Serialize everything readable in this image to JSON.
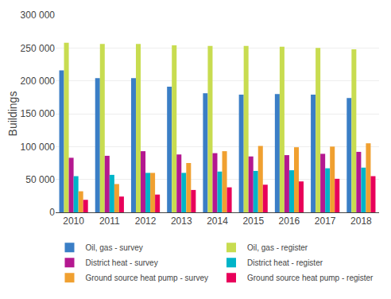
{
  "chart_data": {
    "type": "bar",
    "categories": [
      "2010",
      "2011",
      "2012",
      "2013",
      "2014",
      "2015",
      "2016",
      "2017",
      "2018"
    ],
    "series": [
      {
        "name": "Oil, gas - survey",
        "color": "#3A7EC6",
        "values": [
          216000,
          204000,
          204000,
          191000,
          181000,
          179000,
          180000,
          179000,
          174000
        ]
      },
      {
        "name": "Oil, gas - register",
        "color": "#C8DC50",
        "values": [
          258000,
          256000,
          256000,
          254000,
          253000,
          253000,
          252000,
          250000,
          248000
        ]
      },
      {
        "name": "District heat - survey",
        "color": "#B41890",
        "values": [
          83000,
          86000,
          93000,
          88000,
          90000,
          85000,
          87000,
          89000,
          92000
        ]
      },
      {
        "name": "District heat - register",
        "color": "#00B4C8",
        "values": [
          55000,
          57000,
          60000,
          60000,
          62000,
          63000,
          64000,
          67000,
          68000
        ]
      },
      {
        "name": "Ground source heat pump - survey",
        "color": "#F0A030",
        "values": [
          32000,
          43000,
          60000,
          75000,
          93000,
          101000,
          99000,
          100000,
          105000
        ]
      },
      {
        "name": "Ground source heat pump - register",
        "color": "#E8005A",
        "values": [
          19000,
          24000,
          27000,
          34000,
          38000,
          42000,
          47000,
          51000,
          55000
        ]
      }
    ],
    "ylabel": "Buildings",
    "ylim": [
      0,
      300000
    ],
    "yticks": [
      0,
      {
        "value": 50000,
        "label": "50 000"
      },
      {
        "value": 100000,
        "label": "100 000"
      },
      {
        "value": 150000,
        "label": "150 000"
      },
      {
        "value": 200000,
        "label": "200 000"
      },
      {
        "value": 250000,
        "label": "250 000"
      },
      {
        "value": 300000,
        "label": "300 000"
      }
    ],
    "grid": true,
    "legend": "bottom"
  }
}
